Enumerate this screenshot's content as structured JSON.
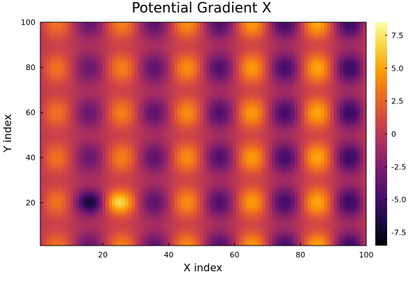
{
  "chart_data": {
    "type": "heatmap",
    "title": "Potential Gradient X",
    "xlabel": "X index",
    "ylabel": "Y index",
    "xlim": [
      1,
      100
    ],
    "ylim": [
      1,
      100
    ],
    "x_ticks": [
      20,
      40,
      60,
      80,
      100
    ],
    "y_ticks": [
      20,
      40,
      60,
      80,
      100
    ],
    "x_tick_labels": [
      "20",
      "40",
      "60",
      "80",
      "100"
    ],
    "y_tick_labels": [
      "20",
      "40",
      "60",
      "80",
      "100"
    ],
    "colorbar": {
      "colormap": "inferno",
      "range": [
        -8.5,
        8.5
      ],
      "ticks": [
        -7.5,
        -5.0,
        -2.5,
        0,
        2.5,
        5.0,
        7.5
      ],
      "tick_labels": [
        "-7.5",
        "-5.0",
        "-2.5",
        "0",
        "2.5",
        "5.0",
        "7.5"
      ]
    },
    "grid_size": [
      100,
      100
    ],
    "pattern": {
      "x_period": 20,
      "y_period": 20,
      "minima_x": [
        16,
        36,
        56,
        76,
        96
      ],
      "maxima_x": [
        6,
        24,
        44,
        64,
        84
      ],
      "row_peaks_y": [
        20,
        40,
        60,
        80,
        100
      ],
      "strongest_minimum": {
        "x": 16,
        "y": 20,
        "value": -8.5
      },
      "strongest_maximum": {
        "x": 24,
        "y": 20,
        "value": 8.0
      }
    }
  },
  "colors": {
    "inferno_stops": [
      "#000004",
      "#1b0c41",
      "#4a0c6b",
      "#781c6d",
      "#a52c60",
      "#cf4446",
      "#ed6925",
      "#fb9b06",
      "#f7d13d",
      "#fcffa4"
    ]
  }
}
